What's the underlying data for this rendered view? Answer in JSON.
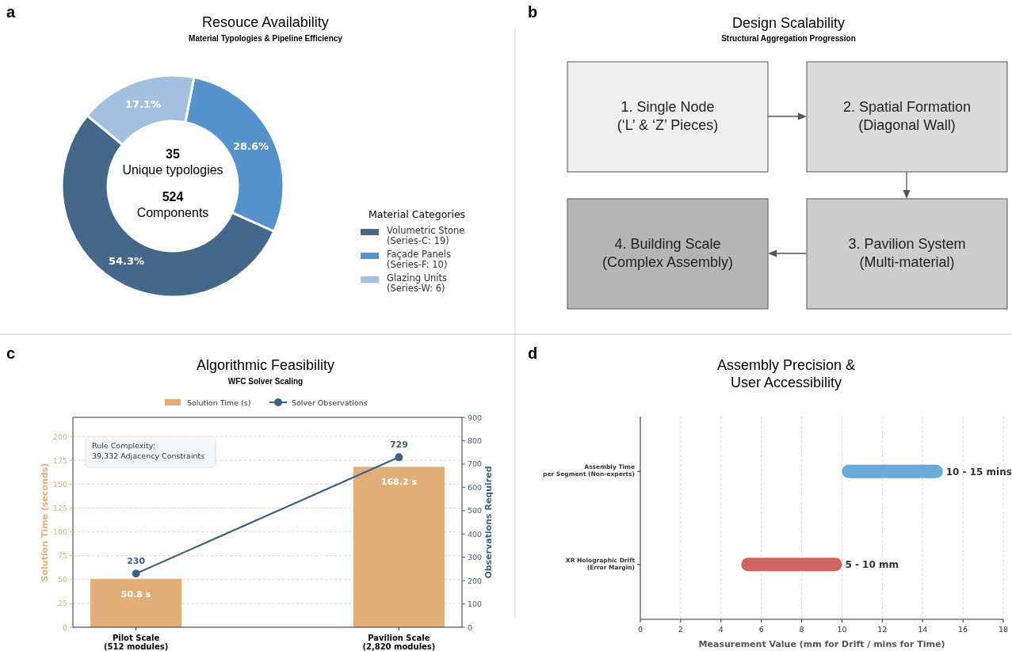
{
  "chart_data": [
    {
      "type": "donut",
      "title": "Resouce Availability",
      "subtitle": "Material Typologies & Pipeline Efficiency",
      "legend_title": "Material Categories",
      "legend": "right",
      "categories": [
        "Volumetric Stone\n(Series-C: 19)",
        "Façade Panels\n(Series-F: 10)",
        "Glazing Units\n(Series-W: 6)"
      ],
      "values": [
        54.3,
        28.6,
        17.1
      ],
      "colors": [
        "#45678a",
        "#5592cc",
        "#a3c0e0"
      ],
      "value_labels": [
        "54.3%",
        "28.6%",
        "17.1%"
      ],
      "annotations": [
        "a",
        "35\nUnique typologies",
        "524\nComponents"
      ]
    },
    {
      "type": "other",
      "title": "Design Scalability",
      "subtitle": "Structural Aggregation Progression",
      "annotations": [
        "b",
        "1. Single Node\n(‘L’ & ‘Z’ Pieces)",
        "2. Spatial Formation\n(Diagonal Wall)",
        "3. Pavilion System\n(Multi-material)",
        "4. Building Scale\n(Complex Assembly)"
      ]
    },
    {
      "type": "bar",
      "title": "Algorithmic Feasibility",
      "subtitle": "WFC Solver Scaling",
      "ylabel": "Solution Time (seconds)",
      "y2label": "Observations Required",
      "categories": [
        "Pilot Scale\n(512 modules)",
        "Pavilion Scale\n(2,820 modules)"
      ],
      "series": [
        {
          "name": "Solution Time (s)",
          "type": "bar",
          "color": "#e2ae78",
          "values": [
            50.8,
            168.2
          ],
          "value_labels": [
            "50.8 s",
            "168.2 s"
          ]
        },
        {
          "name": "Solver Observations",
          "type": "line",
          "axis": "y2",
          "color": "#3d6185",
          "values": [
            230,
            729
          ],
          "value_labels": [
            "230",
            "729"
          ]
        }
      ],
      "ylim": [
        0,
        220
      ],
      "yticks": [
        0,
        25,
        50,
        75,
        100,
        125,
        150,
        175,
        200
      ],
      "y2lim": [
        0,
        900
      ],
      "y2ticks": [
        0,
        100,
        200,
        300,
        400,
        500,
        600,
        700,
        800,
        900
      ],
      "grid": "y",
      "legend": "top",
      "marker": "circle",
      "annotations": [
        "c",
        "Rule Complexity:\n39,332 Adjacency Constraints"
      ]
    },
    {
      "type": "bar",
      "orientation": "horizontal",
      "title": "Assembly Precision &\nUser Accessibility",
      "xlabel": "Measurement Value (mm for Drift / mins for Time)",
      "categories": [
        "Assembly Time\nper Segment (Non-experts)",
        "XR Holographic Drift\n(Error Margin)"
      ],
      "base": [
        10,
        5
      ],
      "values": [
        5,
        5
      ],
      "colors": [
        "#6aaad8",
        "#d0625f"
      ],
      "xlim": [
        0,
        18
      ],
      "xticks": [
        0,
        2,
        4,
        6,
        8,
        10,
        12,
        14,
        16,
        18
      ],
      "grid": "x",
      "annotations": [
        "d",
        {
          "text": "10 - 15 mins",
          "x": 15,
          "y": "Assembly Time\nper Segment (Non-experts)"
        },
        {
          "text": "5 - 10 mm",
          "x": 10,
          "y": "XR Holographic Drift\n(Error Margin)"
        }
      ]
    }
  ]
}
